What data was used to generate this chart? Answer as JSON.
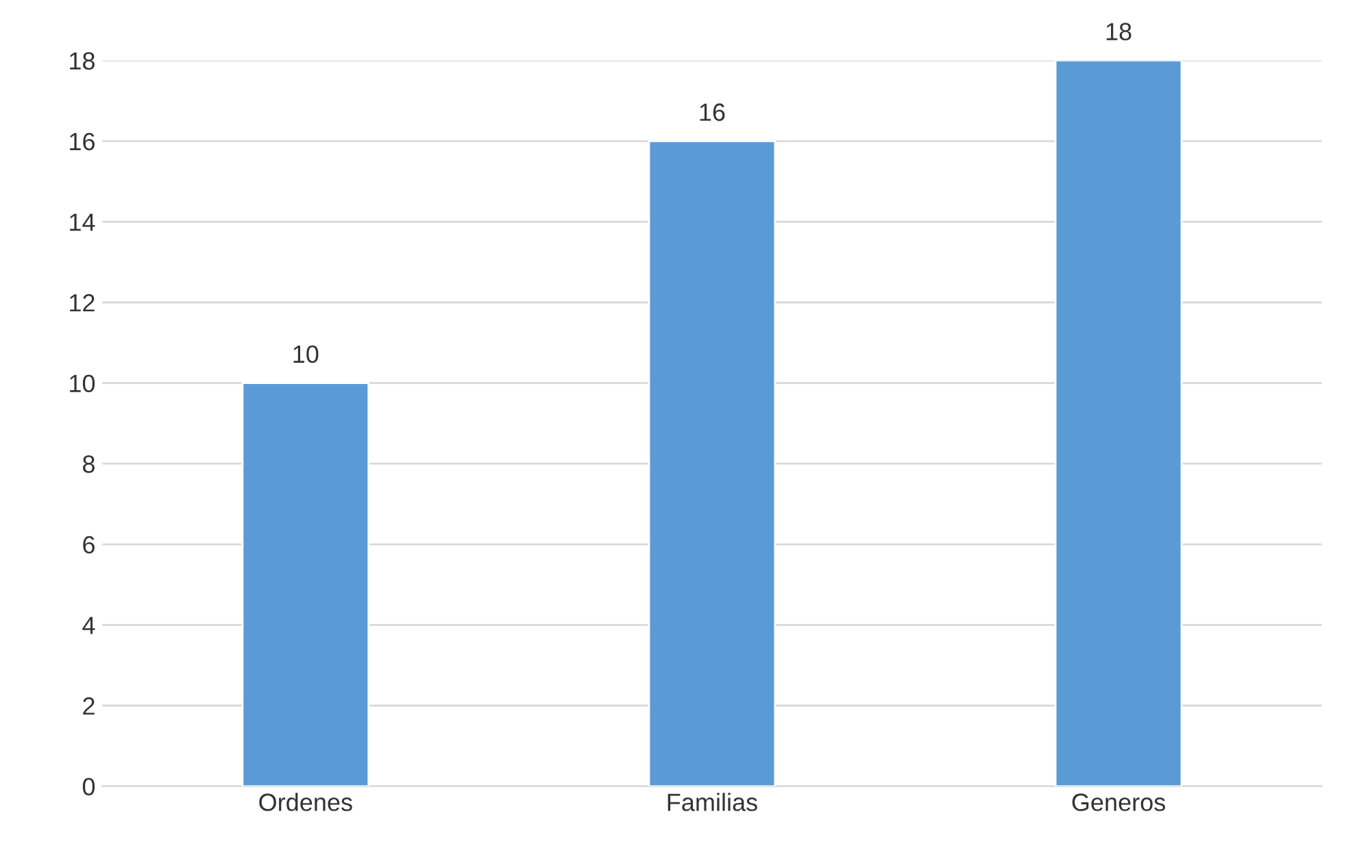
{
  "chart_data": {
    "type": "bar",
    "categories": [
      "Ordenes",
      "Familias",
      "Generos"
    ],
    "values": [
      10,
      16,
      18
    ],
    "data_labels": true,
    "color": "#5b9bd5",
    "ylim": [
      0,
      18
    ],
    "yticks": [
      0,
      2,
      4,
      6,
      8,
      10,
      12,
      14,
      16,
      18
    ],
    "grid": "y"
  }
}
